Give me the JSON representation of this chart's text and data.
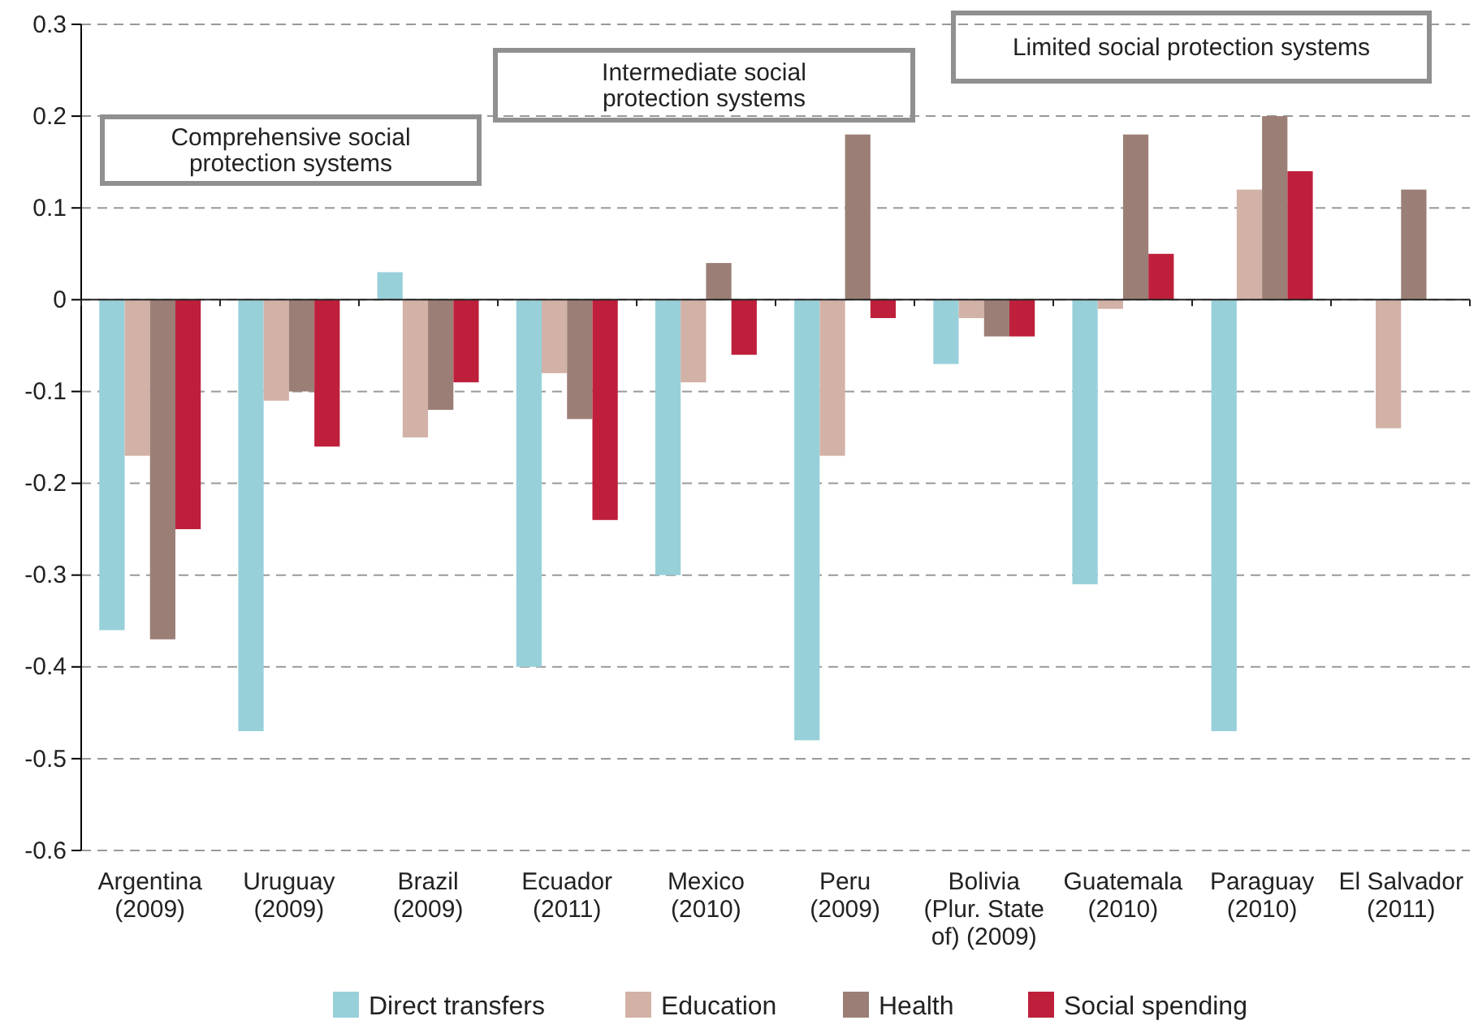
{
  "chart_data": {
    "type": "bar",
    "categories": [
      "Argentina\n(2009)",
      "Uruguay\n(2009)",
      "Brazil\n(2009)",
      "Ecuador\n(2011)",
      "Mexico\n(2010)",
      "Peru\n(2009)",
      "Bolivia\n(Plur. State\nof) (2009)",
      "Guatemala\n(2010)",
      "Paraguay\n(2010)",
      "El Salvador\n(2011)"
    ],
    "series": [
      {
        "name": "Direct transfers",
        "color": "#98d0da",
        "values": [
          -0.36,
          -0.47,
          0.03,
          -0.4,
          -0.3,
          -0.48,
          -0.07,
          -0.31,
          -0.47,
          null
        ]
      },
      {
        "name": "Education",
        "color": "#d2b1a6",
        "values": [
          -0.17,
          -0.11,
          -0.15,
          -0.08,
          -0.09,
          -0.17,
          -0.02,
          -0.01,
          0.12,
          -0.14
        ]
      },
      {
        "name": "Health",
        "color": "#9b7f76",
        "values": [
          -0.37,
          -0.1,
          -0.12,
          -0.13,
          0.04,
          0.18,
          -0.04,
          0.18,
          0.2,
          0.12
        ]
      },
      {
        "name": "Social spending",
        "color": "#be203c",
        "values": [
          -0.25,
          -0.16,
          -0.09,
          -0.24,
          -0.06,
          -0.02,
          -0.04,
          0.05,
          0.14,
          null
        ]
      }
    ],
    "ylim": [
      -0.6,
      0.3
    ],
    "yticks": [
      -0.6,
      -0.5,
      -0.4,
      -0.3,
      -0.2,
      -0.1,
      0,
      0.1,
      0.2,
      0.3
    ],
    "grid": "y",
    "legend": "bottom",
    "annotations": [
      "Comprehensive social\nprotection systems",
      "Intermediate social\nprotection systems",
      "Limited social protection systems"
    ]
  }
}
